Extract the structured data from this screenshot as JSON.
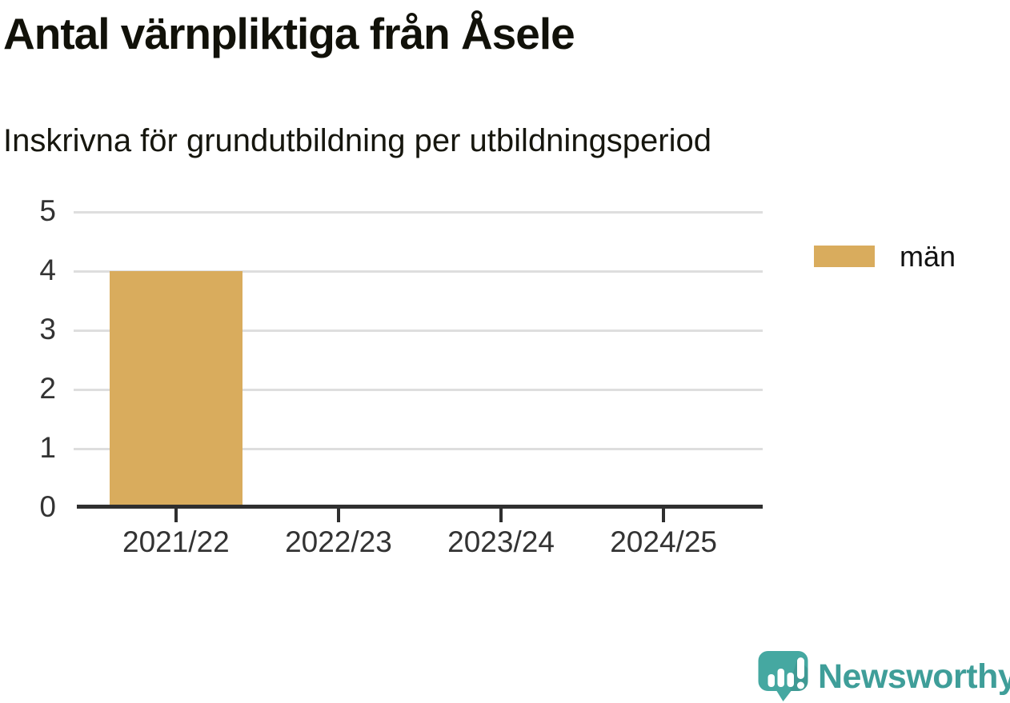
{
  "chart_data": {
    "type": "bar",
    "title": "Antal värnpliktiga från Åsele",
    "subtitle": "Inskrivna för grundutbildning per utbildningsperiod",
    "categories": [
      "2021/22",
      "2022/23",
      "2023/24",
      "2024/25"
    ],
    "series": [
      {
        "name": "män",
        "color": "#d9ac5d",
        "values": [
          4,
          0,
          0,
          0
        ]
      }
    ],
    "xlabel": "",
    "ylabel": "",
    "ylim": [
      0,
      5
    ],
    "yticks": [
      0,
      1,
      2,
      3,
      4,
      5
    ],
    "grid": "horizontal",
    "legend_position": "right",
    "axis_color": "#2f2f2f",
    "gridline_color": "#dedede"
  },
  "legend": {
    "items": [
      {
        "label": "män",
        "color": "#d9ac5d"
      }
    ]
  },
  "branding": {
    "name": "Newsworthy",
    "icon": "newsworthy-speech-bubble-barchart-icon",
    "text_color": "#3f9e99",
    "icon_color": "#45a8a1"
  }
}
